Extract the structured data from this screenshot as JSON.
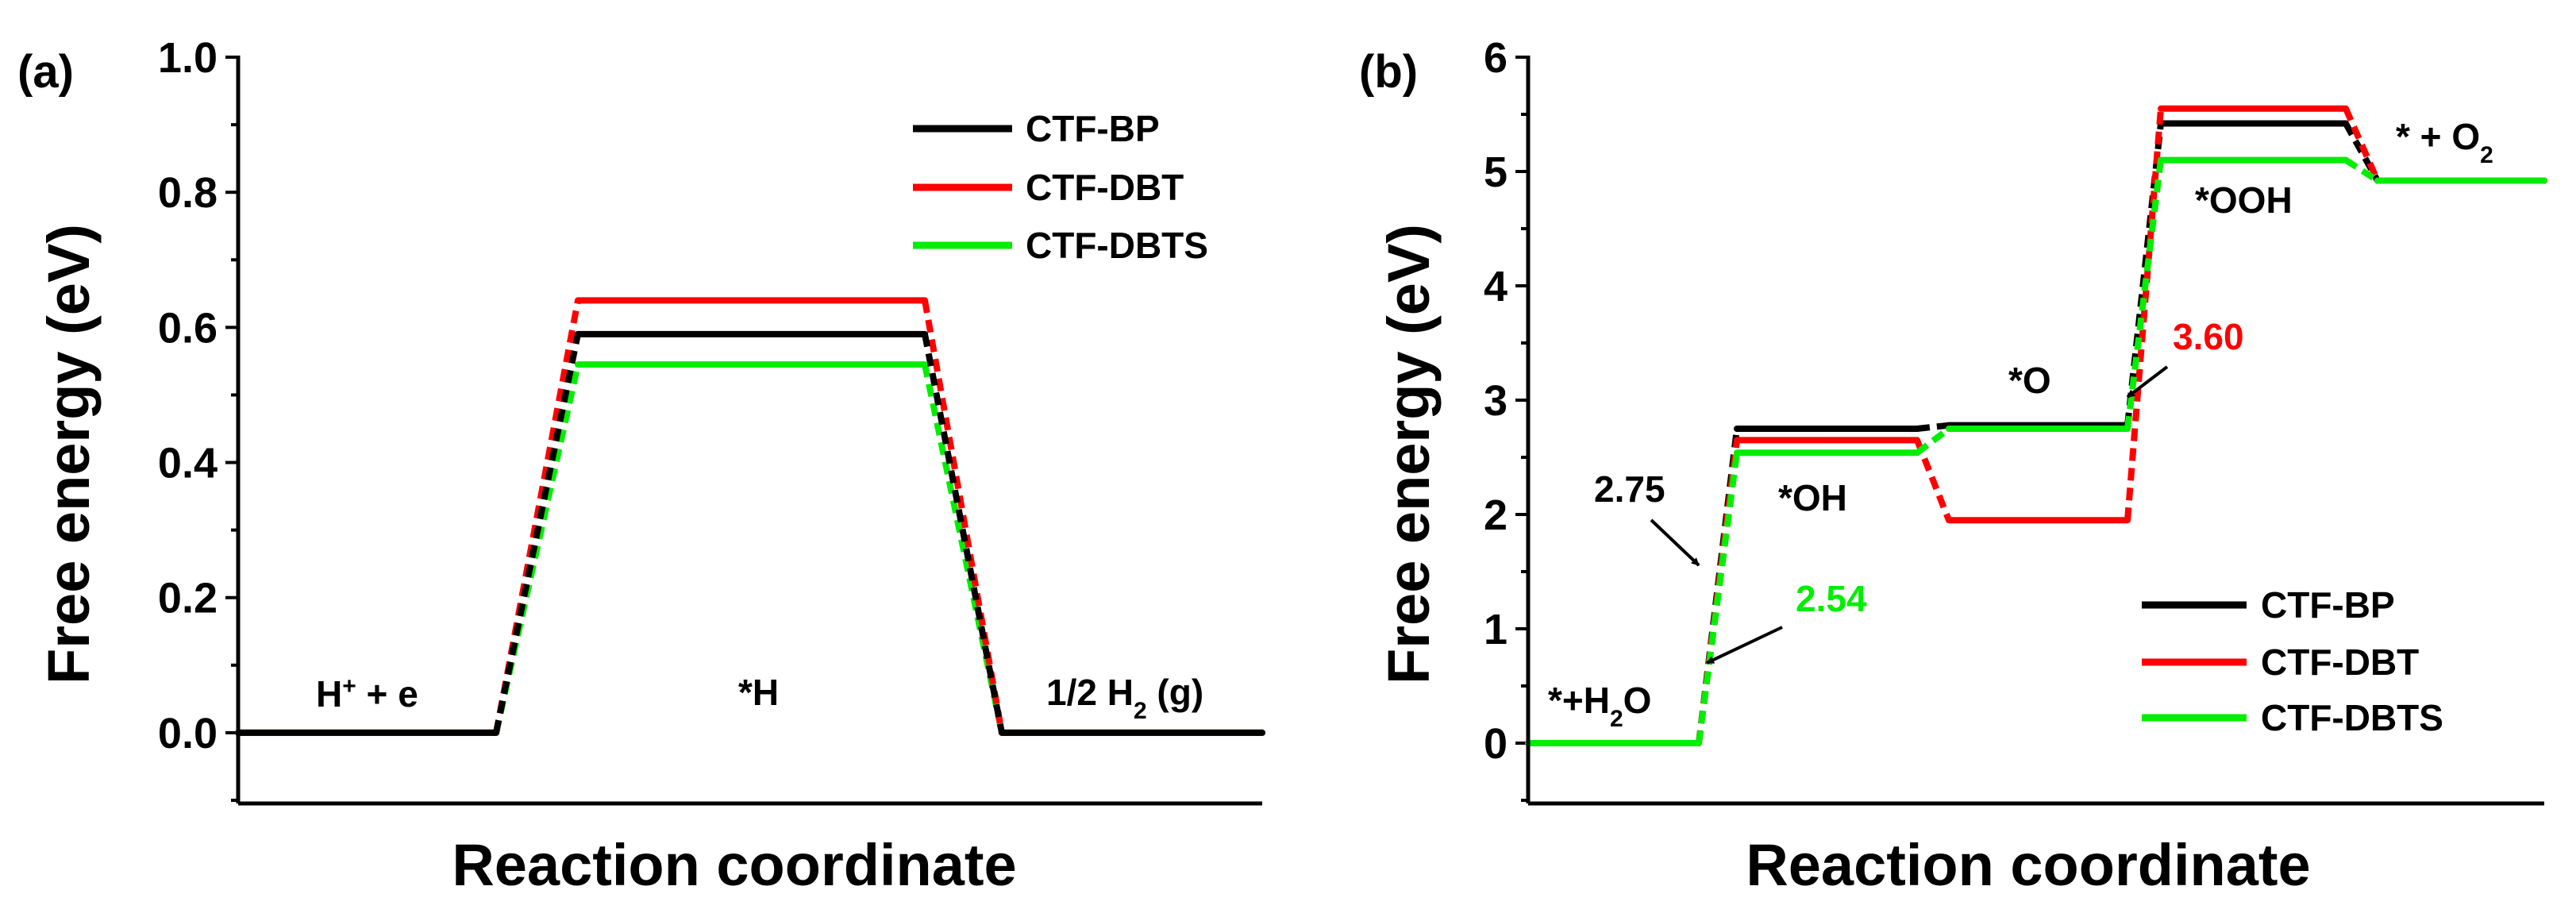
{
  "chart_data": [
    {
      "type": "line",
      "panel_label": "(a)",
      "xlabel": "Reaction coordinate",
      "ylabel": "Free energy (eV)",
      "ylim": [
        -0.1,
        1.0
      ],
      "yticks": [
        "0.0",
        "0.2",
        "0.4",
        "0.6",
        "0.8",
        "1.0"
      ],
      "states": [
        "H+ + e",
        "*H",
        "1/2 H2 (g)"
      ],
      "series": [
        {
          "name": "CTF-BP",
          "color": "#000000",
          "values": [
            0.0,
            0.59,
            0.0
          ]
        },
        {
          "name": "CTF-DBT",
          "color": "#ff0000",
          "values": [
            0.0,
            0.64,
            0.0
          ]
        },
        {
          "name": "CTF-DBTS",
          "color": "#00ee00",
          "values": [
            0.0,
            0.545,
            0.0
          ]
        }
      ],
      "annotations": [
        {
          "text": "H",
          "sup": "+",
          "rest": " + e"
        },
        {
          "text": "*H"
        },
        {
          "text": "1/2 H",
          "sub": "2",
          "rest": " (g)"
        }
      ],
      "legend": [
        "CTF-BP",
        "CTF-DBT",
        "CTF-DBTS"
      ],
      "legend_position": "top-right"
    },
    {
      "type": "line",
      "panel_label": "(b)",
      "xlabel": "Reaction coordinate",
      "ylabel": "Free energy (eV)",
      "ylim": [
        -0.5,
        6
      ],
      "yticks": [
        "0",
        "1",
        "2",
        "3",
        "4",
        "5",
        "6"
      ],
      "states": [
        "*+H2O",
        "*OH",
        "*O",
        "*OOH",
        "* + O2"
      ],
      "series": [
        {
          "name": "CTF-BP",
          "color": "#000000",
          "values": [
            0.0,
            2.75,
            2.78,
            5.42,
            4.92
          ]
        },
        {
          "name": "CTF-DBT",
          "color": "#ff0000",
          "values": [
            0.0,
            2.65,
            1.95,
            5.55,
            4.92
          ]
        },
        {
          "name": "CTF-DBTS",
          "color": "#00ee00",
          "values": [
            0.0,
            2.54,
            2.75,
            5.1,
            4.92
          ]
        }
      ],
      "annotations": [
        {
          "text": "*+H",
          "sub": "2",
          "rest": "O"
        },
        {
          "text": "*OH"
        },
        {
          "text": "*O"
        },
        {
          "text": "*OOH"
        },
        {
          "text": "* + O",
          "sub": "2"
        },
        {
          "text": "2.75",
          "color": "#000000"
        },
        {
          "text": "2.54",
          "color": "#00ee00"
        },
        {
          "text": "3.60",
          "color": "#ff0000"
        }
      ],
      "legend": [
        "CTF-BP",
        "CTF-DBT",
        "CTF-DBTS"
      ],
      "legend_position": "bottom-right"
    }
  ]
}
